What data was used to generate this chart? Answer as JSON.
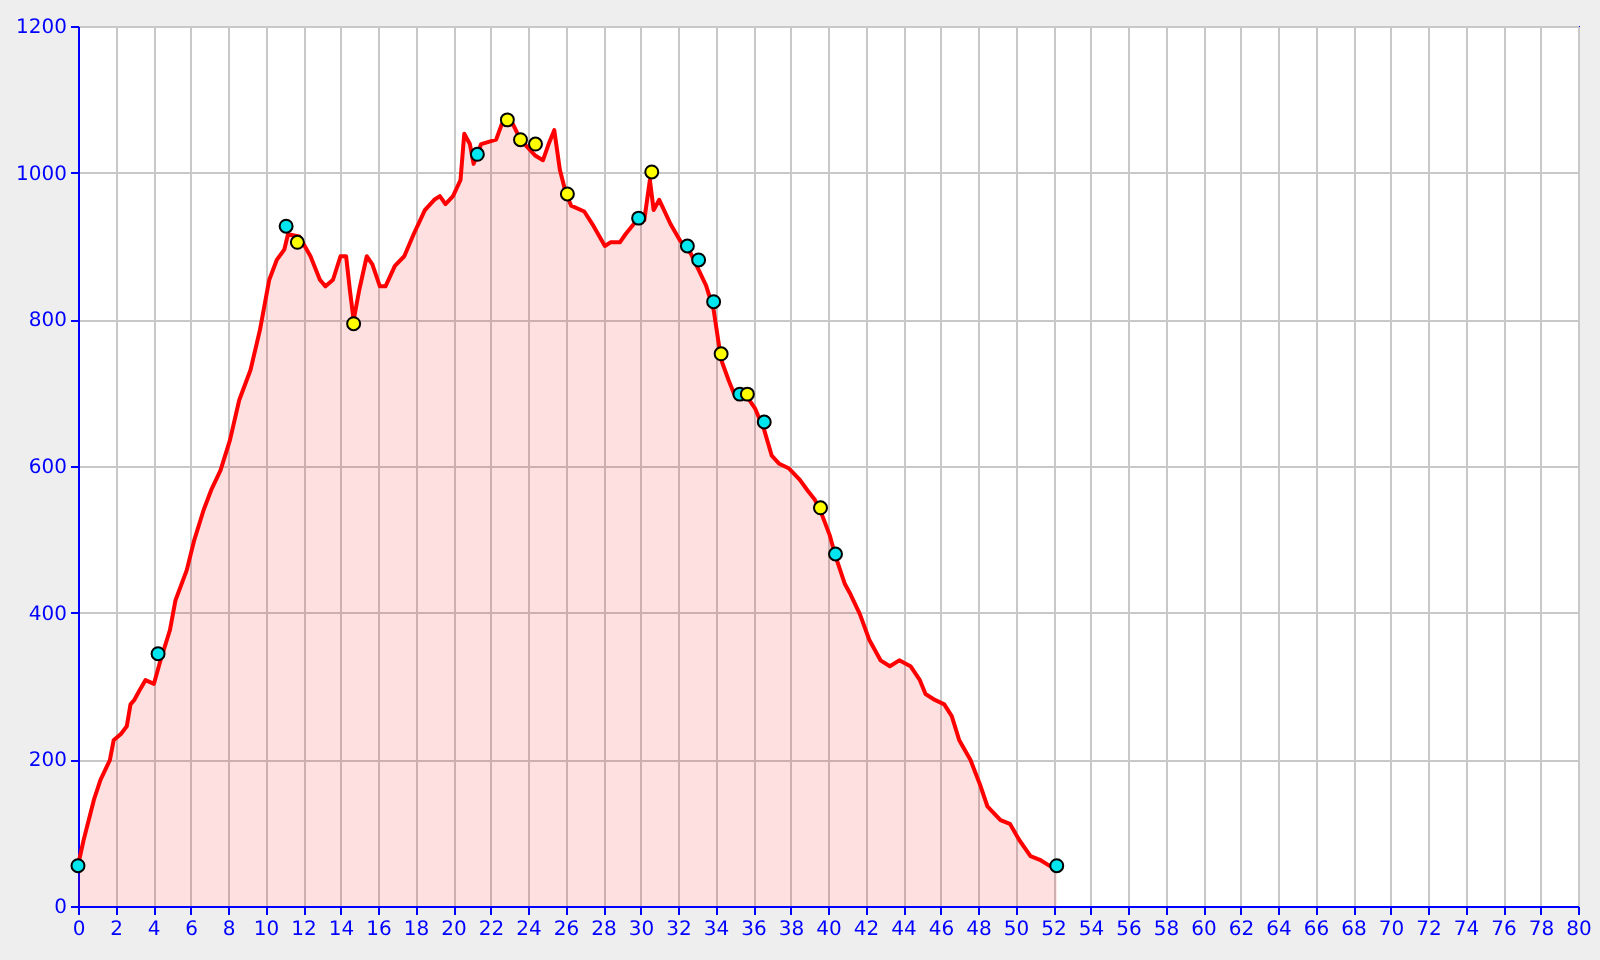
{
  "chart_data": {
    "type": "area",
    "xlim": [
      0,
      80
    ],
    "ylim": [
      0,
      1200
    ],
    "xticks": [
      0,
      2,
      4,
      6,
      8,
      10,
      12,
      14,
      16,
      18,
      20,
      22,
      24,
      26,
      28,
      30,
      32,
      34,
      36,
      38,
      40,
      42,
      44,
      46,
      48,
      50,
      52,
      54,
      56,
      58,
      60,
      62,
      64,
      66,
      68,
      70,
      72,
      74,
      76,
      78,
      80
    ],
    "yticks": [
      0,
      200,
      400,
      600,
      800,
      1000,
      1200
    ],
    "grid": true,
    "series": [
      {
        "type": "area",
        "color": "#ff0000",
        "x": [
          0,
          0.3,
          0.85,
          1.2,
          1.7,
          1.9,
          2.3,
          2.6,
          2.8,
          3.0,
          3.3,
          3.6,
          4.05,
          4.4,
          4.9,
          5.2,
          5.8,
          6.2,
          6.7,
          7.1,
          7.6,
          8.1,
          8.6,
          9.2,
          9.7,
          10.2,
          10.6,
          11.0,
          11.2,
          11.8,
          12.4,
          12.9,
          13.2,
          13.6,
          14.0,
          14.3,
          14.5,
          14.7,
          15.0,
          15.4,
          15.7,
          16.1,
          16.4,
          16.9,
          17.4,
          17.9,
          18.5,
          19.0,
          19.3,
          19.6,
          20.0,
          20.4,
          20.6,
          20.9,
          21.1,
          21.5,
          22.3,
          22.6,
          23.2,
          23.6,
          24.4,
          24.8,
          25.1,
          25.4,
          25.7,
          26.0,
          26.3,
          27.0,
          27.5,
          28.1,
          28.4,
          28.9,
          29.2,
          29.8,
          30.2,
          30.5,
          30.7,
          31.0,
          31.6,
          32.1,
          32.7,
          33.5,
          33.9,
          34.3,
          34.7,
          35.0,
          35.5,
          36.1,
          36.6,
          37.0,
          37.4,
          37.9,
          38.5,
          38.9,
          39.3,
          39.7,
          40.1,
          40.4,
          40.9,
          41.2,
          41.7,
          42.2,
          42.8,
          43.3,
          43.8,
          44.4,
          44.9,
          45.2,
          45.7,
          46.2,
          46.6,
          47.0,
          47.6,
          48.1,
          48.5,
          49.2,
          49.7,
          50.2,
          50.8,
          51.3,
          51.8,
          52.2
        ],
        "values": [
          55,
          90,
          145,
          172,
          199,
          226,
          235,
          245,
          275,
          281,
          295,
          308,
          303,
          335,
          376,
          417,
          458,
          499,
          540,
          567,
          594,
          635,
          690,
          731,
          785,
          854,
          881,
          895,
          916,
          913,
          886,
          854,
          845,
          854,
          886,
          886,
          840,
          799,
          840,
          886,
          875,
          845,
          845,
          873,
          886,
          916,
          949,
          963,
          968,
          957,
          968,
          990,
          1053,
          1039,
          1012,
          1039,
          1045,
          1066,
          1066,
          1045,
          1023,
          1017,
          1039,
          1058,
          1004,
          974,
          955,
          947,
          927,
          900,
          905,
          905,
          916,
          935,
          935,
          990,
          949,
          963,
          930,
          908,
          889,
          846,
          813,
          745,
          717,
          698,
          701,
          679,
          649,
          614,
          603,
          597,
          581,
          567,
          554,
          532,
          505,
          477,
          439,
          425,
          398,
          363,
          335,
          327,
          335,
          327,
          308,
          289,
          281,
          275,
          259,
          226,
          199,
          166,
          136,
          117,
          112,
          90,
          68,
          63,
          55,
          55
        ]
      },
      {
        "type": "scatter",
        "color": "#00e5ee",
        "marker": "circle",
        "x": [
          0,
          4.27,
          11.1,
          21.3,
          29.9,
          32.5,
          33.1,
          33.9,
          35.3,
          36.6,
          40.4,
          52.2
        ],
        "values": [
          55,
          344,
          927,
          1025,
          938,
          900,
          881,
          824,
          698,
          660,
          480,
          55
        ]
      },
      {
        "type": "scatter",
        "color": "#ffff00",
        "marker": "circle",
        "x": [
          11.7,
          14.7,
          22.9,
          23.6,
          24.4,
          26.1,
          30.6,
          34.3,
          35.7,
          39.6
        ],
        "values": [
          905,
          794,
          1072,
          1045,
          1039,
          971,
          1001,
          753,
          698,
          543
        ]
      }
    ]
  }
}
